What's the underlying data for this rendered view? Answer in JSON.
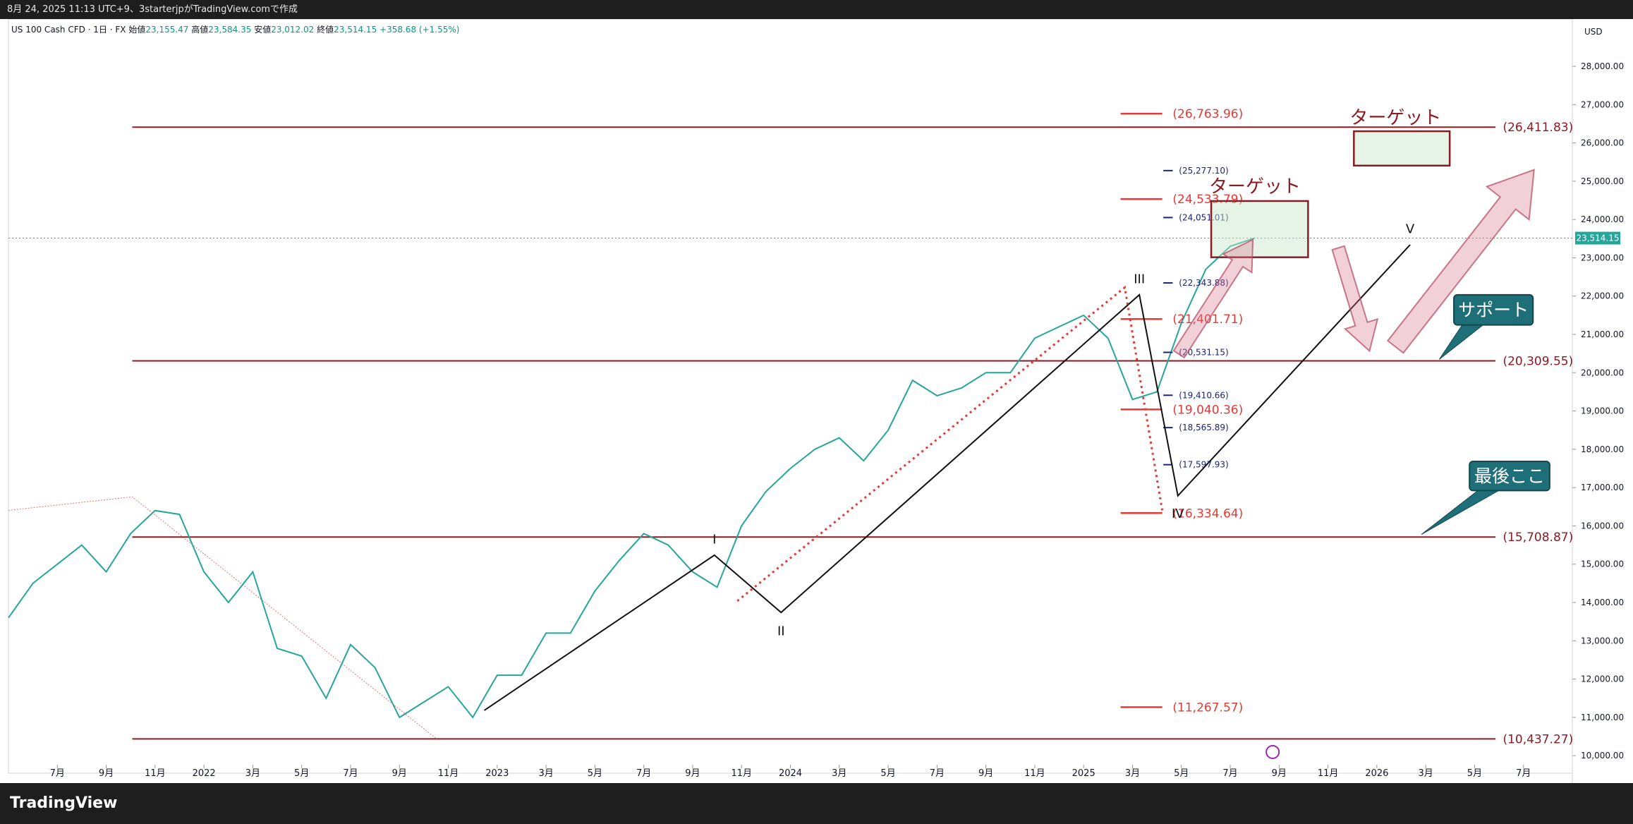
{
  "header": {
    "credit": "8月 24, 2025 11:13 UTC+9、3starterjpがTradingView.comで作成",
    "symbol": "US 100 Cash CFD · 1日 · FX",
    "ohlc": [
      {
        "label": "始値",
        "value": "23,155.47"
      },
      {
        "label": "高値",
        "value": "23,584.35"
      },
      {
        "label": "安値",
        "value": "23,012.02"
      },
      {
        "label": "終値",
        "value": "23,514.15"
      }
    ],
    "change": "+358.68 (+1.55%)",
    "currency": "USD",
    "brand": "TradingView"
  },
  "chart_data": {
    "type": "line",
    "color": "#26a69a",
    "x": [
      "2021-05",
      "2021-06",
      "2021-07",
      "2021-08",
      "2021-09",
      "2021-10",
      "2021-11",
      "2021-12",
      "2022-01",
      "2022-02",
      "2022-03",
      "2022-04",
      "2022-05",
      "2022-06",
      "2022-07",
      "2022-08",
      "2022-09",
      "2022-10",
      "2022-11",
      "2022-12",
      "2023-01",
      "2023-02",
      "2023-03",
      "2023-04",
      "2023-05",
      "2023-06",
      "2023-07",
      "2023-08",
      "2023-09",
      "2023-10",
      "2023-11",
      "2023-12",
      "2024-01",
      "2024-02",
      "2024-03",
      "2024-04",
      "2024-05",
      "2024-06",
      "2024-07",
      "2024-08",
      "2024-09",
      "2024-10",
      "2024-11",
      "2024-12",
      "2025-01",
      "2025-02",
      "2025-03",
      "2025-04",
      "2025-05",
      "2025-06",
      "2025-07",
      "2025-08"
    ],
    "values": [
      13600,
      14500,
      15000,
      15500,
      14800,
      15800,
      16400,
      16300,
      14800,
      14000,
      14800,
      12800,
      12600,
      11500,
      12900,
      12300,
      11000,
      11400,
      11800,
      11000,
      12100,
      12100,
      13200,
      13200,
      14300,
      15100,
      15800,
      15500,
      14800,
      14400,
      16000,
      16900,
      17500,
      18000,
      18300,
      17700,
      18500,
      19800,
      19400,
      19600,
      20000,
      20000,
      20900,
      21200,
      21500,
      20900,
      19300,
      19500,
      21300,
      22700,
      23300,
      23514.15
    ],
    "xlim": [
      "2021-05",
      "2026-09"
    ],
    "xticks": [
      {
        "value": "2021-07",
        "label": "7月"
      },
      {
        "value": "2021-09",
        "label": "9月"
      },
      {
        "value": "2021-11",
        "label": "11月"
      },
      {
        "value": "2022-01",
        "label": "2022"
      },
      {
        "value": "2022-03",
        "label": "3月"
      },
      {
        "value": "2022-05",
        "label": "5月"
      },
      {
        "value": "2022-07",
        "label": "7月"
      },
      {
        "value": "2022-09",
        "label": "9月"
      },
      {
        "value": "2022-11",
        "label": "11月"
      },
      {
        "value": "2023-01",
        "label": "2023"
      },
      {
        "value": "2023-03",
        "label": "3月"
      },
      {
        "value": "2023-05",
        "label": "5月"
      },
      {
        "value": "2023-07",
        "label": "7月"
      },
      {
        "value": "2023-09",
        "label": "9月"
      },
      {
        "value": "2023-11",
        "label": "11月"
      },
      {
        "value": "2024-01",
        "label": "2024"
      },
      {
        "value": "2024-03",
        "label": "3月"
      },
      {
        "value": "2024-05",
        "label": "5月"
      },
      {
        "value": "2024-07",
        "label": "7月"
      },
      {
        "value": "2024-09",
        "label": "9月"
      },
      {
        "value": "2024-11",
        "label": "11月"
      },
      {
        "value": "2025-01",
        "label": "2025"
      },
      {
        "value": "2025-03",
        "label": "3月"
      },
      {
        "value": "2025-05",
        "label": "5月"
      },
      {
        "value": "2025-07",
        "label": "7月"
      },
      {
        "value": "2025-09",
        "label": "9月"
      },
      {
        "value": "2025-11",
        "label": "11月"
      },
      {
        "value": "2026-01",
        "label": "2026"
      },
      {
        "value": "2026-03",
        "label": "3月"
      },
      {
        "value": "2026-05",
        "label": "5月"
      },
      {
        "value": "2026-07",
        "label": "7月"
      }
    ],
    "ylim": [
      9800,
      28700
    ],
    "yticks": [
      {
        "value": 10000,
        "label": "10,000.00"
      },
      {
        "value": 11000,
        "label": "11,000.00"
      },
      {
        "value": 12000,
        "label": "12,000.00"
      },
      {
        "value": 13000,
        "label": "13,000.00"
      },
      {
        "value": 14000,
        "label": "14,000.00"
      },
      {
        "value": 15000,
        "label": "15,000.00"
      },
      {
        "value": 16000,
        "label": "16,000.00"
      },
      {
        "value": 17000,
        "label": "17,000.00"
      },
      {
        "value": 18000,
        "label": "18,000.00"
      },
      {
        "value": 19000,
        "label": "19,000.00"
      },
      {
        "value": 20000,
        "label": "20,000.00"
      },
      {
        "value": 21000,
        "label": "21,000.00"
      },
      {
        "value": 22000,
        "label": "22,000.00"
      },
      {
        "value": 23000,
        "label": "23,000.00"
      },
      {
        "value": 24000,
        "label": "24,000.00"
      },
      {
        "value": 25000,
        "label": "25,000.00"
      },
      {
        "value": 26000,
        "label": "26,000.00"
      },
      {
        "value": 27000,
        "label": "27,000.00"
      },
      {
        "value": 28000,
        "label": "28,000.00"
      }
    ],
    "last_price": {
      "value": 23514.15,
      "label": "23,514.15"
    },
    "levels": [
      {
        "value": 26411.83,
        "label": "(26,411.83)"
      },
      {
        "value": 20309.55,
        "label": "(20,309.55)"
      },
      {
        "value": 15708.87,
        "label": "(15,708.87)"
      },
      {
        "value": 10437.27,
        "label": "(10,437.27)"
      }
    ],
    "fib_levels": [
      {
        "value": 26763.96,
        "label": "(26,763.96)"
      },
      {
        "value": 24533.79,
        "label": "(24,533.79)"
      },
      {
        "value": 21401.71,
        "label": "(21,401.71)"
      },
      {
        "value": 19040.36,
        "label": "(19,040.36)"
      },
      {
        "value": 16334.64,
        "label": "(16,334.64)"
      },
      {
        "value": 11267.57,
        "label": "(11,267.57)"
      }
    ],
    "sub_levels": [
      {
        "value": 25277.1,
        "label": "(25,277.10)"
      },
      {
        "value": 24051.01,
        "label": "(24,051.01)"
      },
      {
        "value": 22343.88,
        "label": "(22,343.88)"
      },
      {
        "value": 20531.15,
        "label": "(20,531.15)"
      },
      {
        "value": 19410.66,
        "label": "(19,410.66)"
      },
      {
        "value": 18565.89,
        "label": "(18,565.89)"
      },
      {
        "value": 17597.93,
        "label": "(17,597.93)"
      }
    ],
    "waves": [
      "I",
      "II",
      "III",
      "IV",
      "V"
    ],
    "targets": [
      "ターゲット",
      "ターゲット"
    ],
    "callouts": [
      "サポート",
      "最後ここ"
    ]
  }
}
